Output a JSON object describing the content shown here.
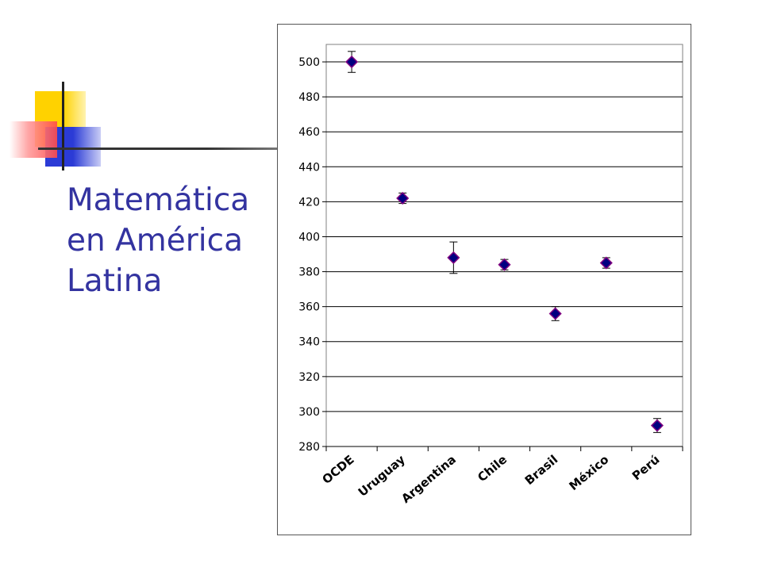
{
  "slide": {
    "title": "Matemática\nen América\nLatina"
  },
  "colors": {
    "title": "#3333a0",
    "marker_fill": "#000080",
    "marker_stroke": "#800080",
    "error_bar": "#000000"
  },
  "chart_data": {
    "type": "scatter",
    "title": "",
    "xlabel": "",
    "ylabel": "",
    "categories": [
      "OCDE",
      "Uruguay",
      "Argentina",
      "Chile",
      "Brasil",
      "México",
      "Perú"
    ],
    "series": [
      {
        "values": [
          500,
          422,
          388,
          384,
          356,
          385,
          292
        ],
        "error_low": [
          494,
          419,
          379,
          381,
          352,
          382,
          288
        ],
        "error_high": [
          506,
          425,
          397,
          387,
          360,
          388,
          296
        ]
      }
    ],
    "ylim": [
      280,
      510
    ],
    "yticks": [
      280,
      300,
      320,
      340,
      360,
      380,
      400,
      420,
      440,
      460,
      480,
      500
    ],
    "grid": true,
    "legend": "none",
    "marker": "diamond"
  }
}
